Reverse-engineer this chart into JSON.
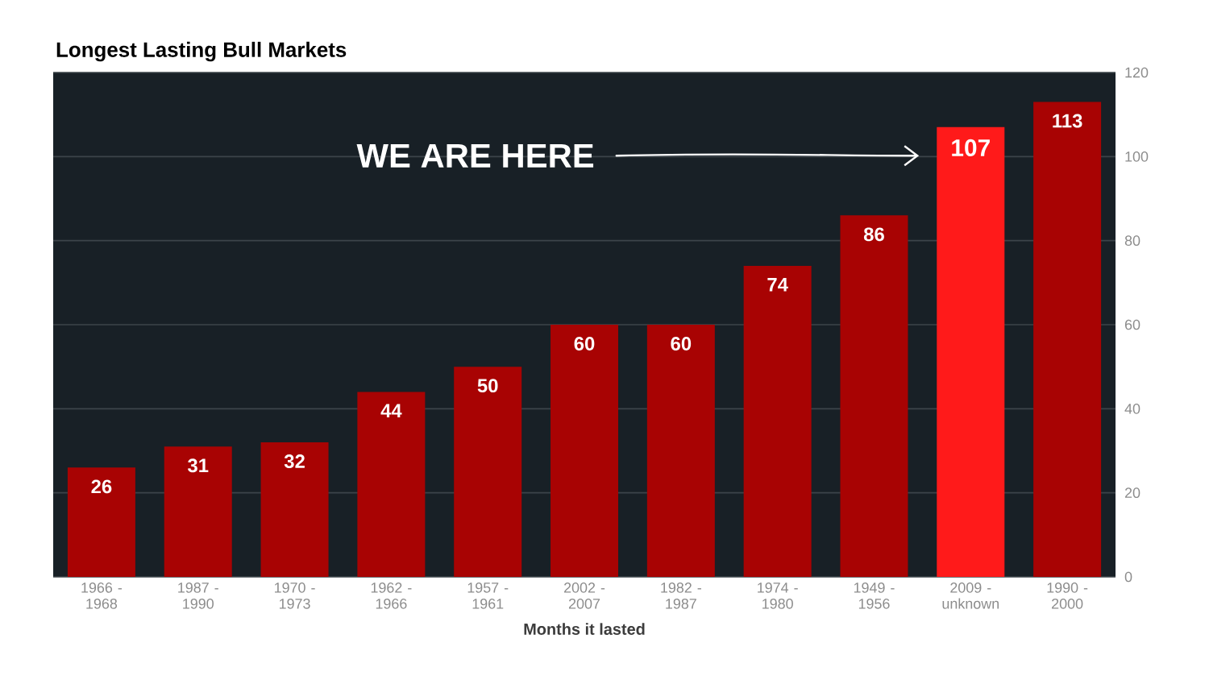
{
  "chart_data": {
    "type": "bar",
    "title": "Longest Lasting Bull Markets",
    "xlabel": "Months it lasted",
    "categories": [
      "1966 - 1968",
      "1987 - 1990",
      "1970 - 1973",
      "1962 - 1966",
      "1957 - 1961",
      "2002 - 2007",
      "1982 - 1987",
      "1974 - 1980",
      "1949 - 1956",
      "2009 - unknown",
      "1990 - 2000"
    ],
    "values": [
      26,
      31,
      32,
      44,
      50,
      60,
      60,
      74,
      86,
      107,
      113
    ],
    "colors": [
      "#a80303",
      "#a80303",
      "#a80303",
      "#a80303",
      "#a80303",
      "#a80303",
      "#a80303",
      "#a80303",
      "#a80303",
      "#ff1a1a",
      "#a80303"
    ],
    "ylim": [
      0,
      120
    ],
    "yticks": [
      0,
      20,
      40,
      60,
      80,
      100,
      120
    ],
    "grid": "y",
    "data_labels": true,
    "annotations": [
      "WE ARE HERE"
    ]
  }
}
